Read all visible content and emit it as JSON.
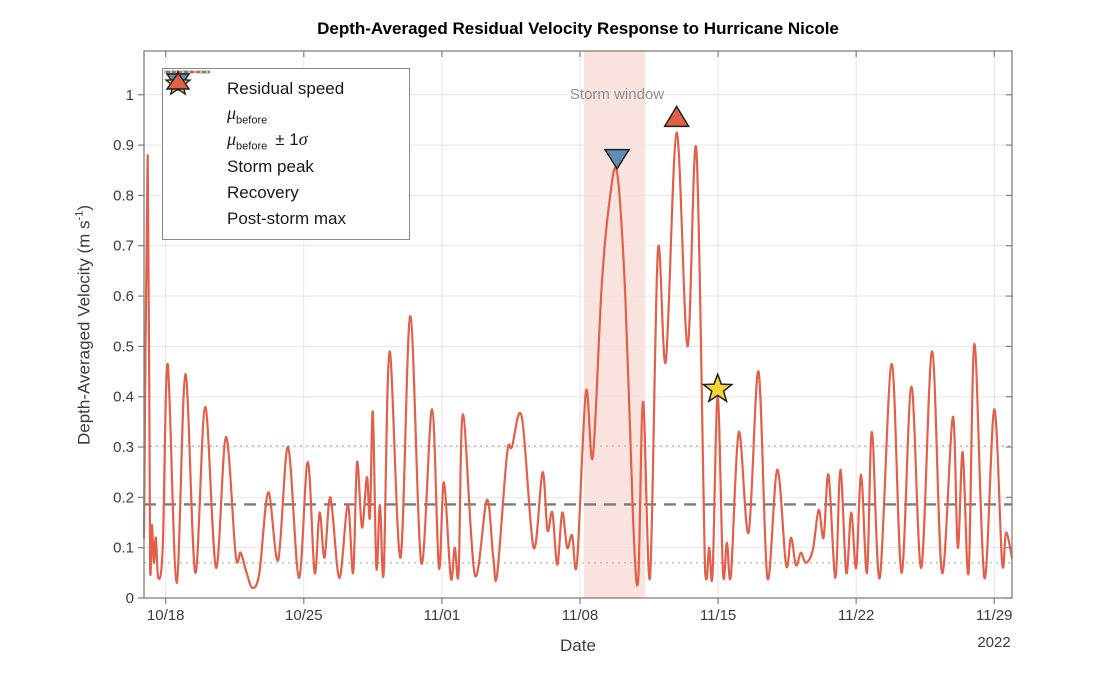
{
  "chart_data": {
    "type": "line",
    "title": "Depth-Averaged Residual Velocity Response to Hurricane Nicole",
    "xlabel": "Date",
    "ylabel_pre": "Depth-Averaged Velocity (m s",
    "ylabel_sup": "-1",
    "ylabel_post": ")",
    "year_label": "2022",
    "grid": true,
    "xlim_days": [
      -1.1,
      42.9
    ],
    "ylim": [
      0,
      1.087
    ],
    "x_ticks": [
      {
        "t": 0,
        "label": "10/18"
      },
      {
        "t": 7,
        "label": "10/25"
      },
      {
        "t": 14,
        "label": "11/01"
      },
      {
        "t": 21,
        "label": "11/08"
      },
      {
        "t": 28,
        "label": "11/15"
      },
      {
        "t": 35,
        "label": "11/22"
      },
      {
        "t": 42,
        "label": "11/29"
      }
    ],
    "y_ticks": [
      {
        "v": 0,
        "label": "0"
      },
      {
        "v": 0.1,
        "label": "0.1"
      },
      {
        "v": 0.2,
        "label": "0.2"
      },
      {
        "v": 0.3,
        "label": "0.3"
      },
      {
        "v": 0.4,
        "label": "0.4"
      },
      {
        "v": 0.5,
        "label": "0.5"
      },
      {
        "v": 0.6,
        "label": "0.6"
      },
      {
        "v": 0.7,
        "label": "0.7"
      },
      {
        "v": 0.8,
        "label": "0.8"
      },
      {
        "v": 0.9,
        "label": "0.9"
      },
      {
        "v": 1,
        "label": "1"
      }
    ],
    "stats": {
      "mu_before": 0.186,
      "sigma": 0.116,
      "band_upper": 0.302,
      "band_lower": 0.07
    },
    "storm_window": {
      "label": "Storm window",
      "t_start": 21.2,
      "t_end": 24.3
    },
    "series": [
      {
        "name": "Residual speed",
        "type": "line",
        "points": [
          [
            -1.1,
            0.12
          ],
          [
            -0.91,
            0.88
          ],
          [
            -0.79,
            0.06
          ],
          [
            -0.7,
            0.145
          ],
          [
            -0.6,
            0.07
          ],
          [
            -0.5,
            0.12
          ],
          [
            -0.38,
            0.04
          ],
          [
            -0.15,
            0.1
          ],
          [
            0.1,
            0.465
          ],
          [
            0.55,
            0.03
          ],
          [
            1.0,
            0.445
          ],
          [
            1.5,
            0.05
          ],
          [
            2.0,
            0.38
          ],
          [
            2.55,
            0.06
          ],
          [
            3.05,
            0.32
          ],
          [
            3.55,
            0.085
          ],
          [
            3.8,
            0.09
          ],
          [
            4.1,
            0.05
          ],
          [
            4.4,
            0.02
          ],
          [
            4.75,
            0.05
          ],
          [
            5.2,
            0.21
          ],
          [
            5.7,
            0.075
          ],
          [
            6.2,
            0.3
          ],
          [
            6.75,
            0.04
          ],
          [
            7.2,
            0.27
          ],
          [
            7.55,
            0.05
          ],
          [
            7.8,
            0.17
          ],
          [
            8.05,
            0.08
          ],
          [
            8.35,
            0.2
          ],
          [
            8.8,
            0.04
          ],
          [
            9.23,
            0.185
          ],
          [
            9.5,
            0.05
          ],
          [
            9.7,
            0.27
          ],
          [
            9.95,
            0.14
          ],
          [
            10.2,
            0.24
          ],
          [
            10.35,
            0.16
          ],
          [
            10.5,
            0.37
          ],
          [
            10.68,
            0.06
          ],
          [
            10.86,
            0.185
          ],
          [
            11.05,
            0.05
          ],
          [
            11.35,
            0.49
          ],
          [
            11.9,
            0.08
          ],
          [
            12.4,
            0.56
          ],
          [
            12.95,
            0.07
          ],
          [
            13.5,
            0.375
          ],
          [
            13.85,
            0.06
          ],
          [
            14.1,
            0.23
          ],
          [
            14.45,
            0.04
          ],
          [
            14.65,
            0.1
          ],
          [
            14.85,
            0.05
          ],
          [
            15.07,
            0.365
          ],
          [
            15.67,
            0.046
          ],
          [
            16.28,
            0.195
          ],
          [
            16.6,
            0.082
          ],
          [
            16.8,
            0.046
          ],
          [
            17.3,
            0.285
          ],
          [
            17.55,
            0.3
          ],
          [
            18.05,
            0.36
          ],
          [
            18.65,
            0.1
          ],
          [
            19.1,
            0.25
          ],
          [
            19.35,
            0.135
          ],
          [
            19.6,
            0.17
          ],
          [
            19.85,
            0.066
          ],
          [
            20.1,
            0.17
          ],
          [
            20.35,
            0.1
          ],
          [
            20.6,
            0.125
          ],
          [
            20.85,
            0.07
          ],
          [
            21.3,
            0.41
          ],
          [
            21.65,
            0.28
          ],
          [
            22.1,
            0.62
          ],
          [
            22.5,
            0.79
          ],
          [
            22.88,
            0.845
          ],
          [
            23.3,
            0.6
          ],
          [
            23.7,
            0.15
          ],
          [
            23.95,
            0.035
          ],
          [
            24.2,
            0.39
          ],
          [
            24.55,
            0.04
          ],
          [
            24.95,
            0.69
          ],
          [
            25.35,
            0.47
          ],
          [
            25.9,
            0.925
          ],
          [
            26.45,
            0.5
          ],
          [
            26.9,
            0.89
          ],
          [
            27.35,
            0.05
          ],
          [
            27.55,
            0.1
          ],
          [
            27.72,
            0.045
          ],
          [
            27.98,
            0.4
          ],
          [
            28.25,
            0.05
          ],
          [
            28.45,
            0.11
          ],
          [
            28.65,
            0.045
          ],
          [
            29.05,
            0.33
          ],
          [
            29.55,
            0.13
          ],
          [
            30.05,
            0.45
          ],
          [
            30.5,
            0.04
          ],
          [
            31.0,
            0.255
          ],
          [
            31.45,
            0.065
          ],
          [
            31.7,
            0.12
          ],
          [
            31.95,
            0.065
          ],
          [
            32.2,
            0.09
          ],
          [
            32.45,
            0.07
          ],
          [
            32.8,
            0.095
          ],
          [
            33.1,
            0.175
          ],
          [
            33.35,
            0.12
          ],
          [
            33.6,
            0.245
          ],
          [
            33.95,
            0.04
          ],
          [
            34.2,
            0.255
          ],
          [
            34.5,
            0.05
          ],
          [
            34.75,
            0.17
          ],
          [
            35.0,
            0.06
          ],
          [
            35.25,
            0.245
          ],
          [
            35.55,
            0.05
          ],
          [
            35.8,
            0.33
          ],
          [
            36.2,
            0.04
          ],
          [
            36.8,
            0.465
          ],
          [
            37.3,
            0.05
          ],
          [
            37.8,
            0.42
          ],
          [
            38.3,
            0.06
          ],
          [
            38.85,
            0.49
          ],
          [
            39.35,
            0.05
          ],
          [
            39.9,
            0.36
          ],
          [
            40.15,
            0.1
          ],
          [
            40.4,
            0.29
          ],
          [
            40.7,
            0.05
          ],
          [
            41.0,
            0.505
          ],
          [
            41.5,
            0.04
          ],
          [
            42.0,
            0.375
          ],
          [
            42.4,
            0.07
          ],
          [
            42.6,
            0.13
          ],
          [
            42.9,
            0.08
          ]
        ]
      }
    ],
    "markers": [
      {
        "name": "storm-peak",
        "label": "Storm peak",
        "shape": "triangle-down",
        "t": 22.88,
        "v": 0.875
      },
      {
        "name": "post-storm-max",
        "label": "Post-storm max",
        "shape": "triangle-up",
        "t": 25.9,
        "v": 0.955
      },
      {
        "name": "recovery",
        "label": "Recovery",
        "shape": "star",
        "t": 27.98,
        "v": 0.415
      }
    ],
    "legend": {
      "residual_label": "Residual speed",
      "mu_symbol": "μ",
      "mu_subscript": "before",
      "pm_prefix": "± 1",
      "sigma_symbol": "σ",
      "storm_peak_label": "Storm peak",
      "recovery_label": "Recovery",
      "post_storm_label": "Post-storm max"
    },
    "colors": {
      "line": "#E2604A",
      "storm_band": "#FAE3DF",
      "mu_line": "#7A7A7A",
      "sigma_line": "#C6C6C6",
      "grid": "#E5E5E5",
      "axis": "#7F7F7F",
      "tick_text": "#3B3B3B",
      "title_text": "#000000",
      "storm_label_text": "#8F8F8F",
      "marker_storm_peak": "#5E8FB5",
      "marker_recovery": "#F7D331",
      "marker_post_storm": "#E2604A",
      "marker_edge": "#1F1F1F",
      "background": "#FFFFFF"
    }
  }
}
